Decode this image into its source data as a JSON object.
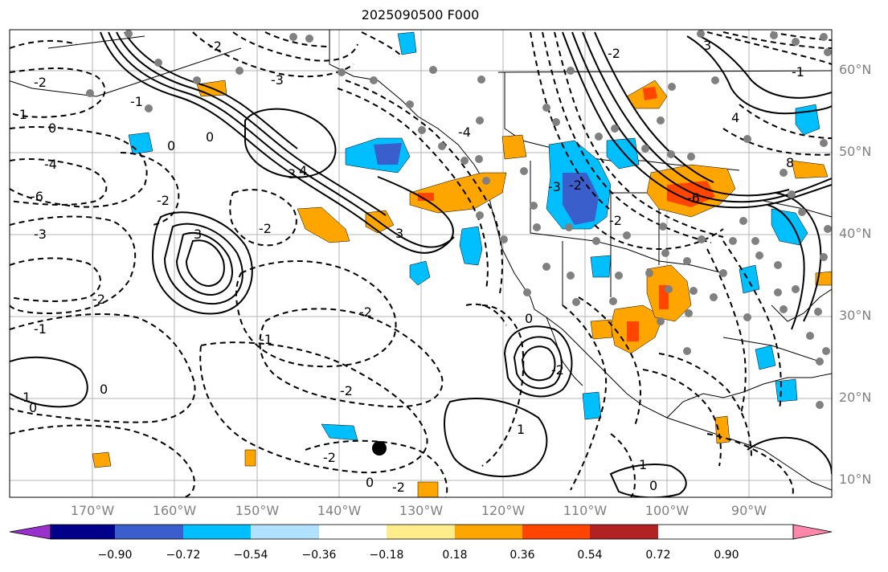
{
  "title": "2025090500 F000",
  "lat_labels": [
    "60°N",
    "50°N",
    "40°N",
    "30°N",
    "20°N",
    "10°N"
  ],
  "lon_labels": [
    "170°W",
    "160°W",
    "150°W",
    "140°W",
    "130°W",
    "120°W",
    "110°W",
    "100°W",
    "90°W"
  ],
  "colorbar": {
    "ticks": [
      "−0.90",
      "−0.72",
      "−0.54",
      "−0.36",
      "−0.18",
      "0.18",
      "0.36",
      "0.54",
      "0.72",
      "0.90"
    ],
    "colors": [
      "#9932cc",
      "#00008b",
      "#3a5fcd",
      "#00bfff",
      "#b0e2ff",
      "#ffffff",
      "#ffec8b",
      "#ffa500",
      "#ff4500",
      "#b22222",
      "#ff88aa"
    ]
  },
  "contour_labels": [
    "-2",
    "-2",
    "-1",
    "0",
    "-1",
    "0",
    "-4",
    "-6",
    "-3",
    "-2",
    "-2",
    "-1",
    "1",
    "0",
    "0",
    "-2",
    "-3",
    "3",
    "4",
    "3",
    "0",
    "3",
    "1",
    "1",
    "-2",
    "-2",
    "-2",
    "0",
    "-1",
    "-4",
    "-2",
    "-2",
    "0",
    "-2",
    "-2",
    "3",
    "4",
    "-3",
    "-2",
    "8",
    "-1",
    "-6",
    "0"
  ]
}
